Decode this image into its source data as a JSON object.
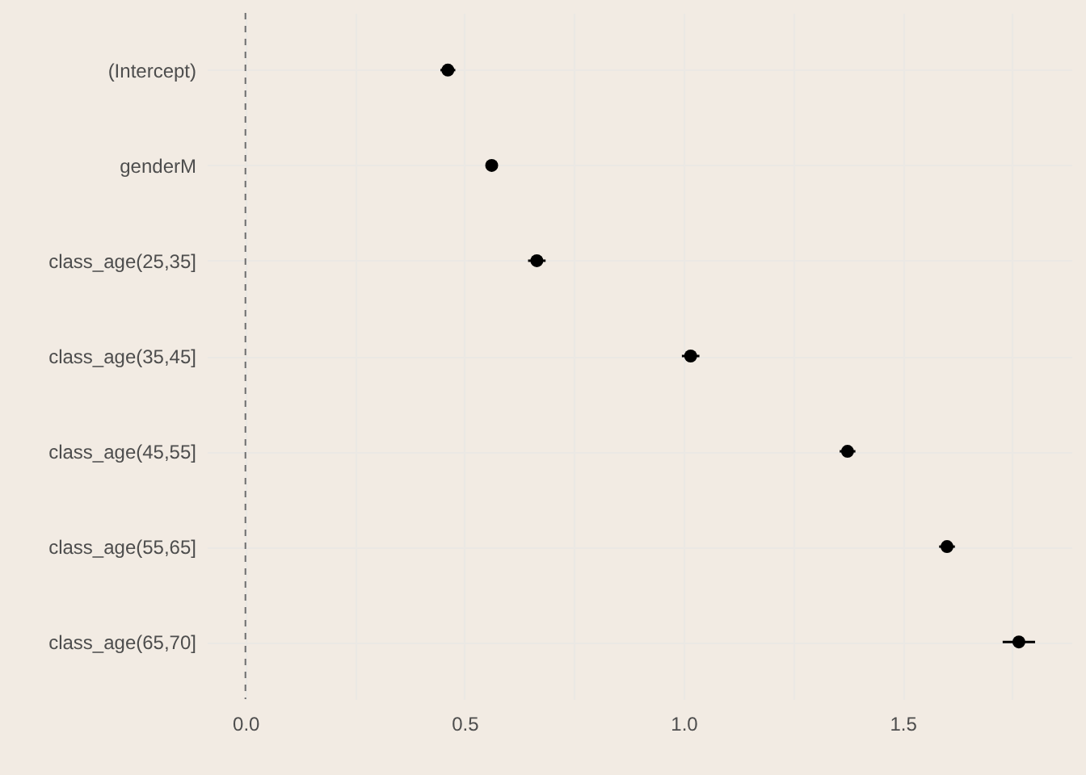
{
  "chart_data": {
    "type": "scatter",
    "orientation": "horizontal",
    "categories": [
      "(Intercept)",
      "genderM",
      "class_age(25,35]",
      "class_age(35,45]",
      "class_age(45,55]",
      "class_age(55,65]",
      "class_age(65,70]"
    ],
    "values": [
      0.462,
      0.562,
      0.665,
      1.016,
      1.374,
      1.601,
      1.765
    ],
    "errors": [
      0.017,
      0.01,
      0.02,
      0.02,
      0.018,
      0.018,
      0.037
    ],
    "color": "#000000",
    "marker": "circle",
    "xlim": [
      -0.088,
      1.885
    ],
    "xticks": [
      {
        "value": 0,
        "label": "0.0"
      },
      {
        "value": 0.25,
        "label": null
      },
      {
        "value": 0.5,
        "label": "0.5"
      },
      {
        "value": 0.75,
        "label": null
      },
      {
        "value": 1,
        "label": "1.0"
      },
      {
        "value": 1.25,
        "label": null
      },
      {
        "value": 1.5,
        "label": "1.5"
      },
      {
        "value": 1.75,
        "label": null
      }
    ],
    "ref_lines": [
      {
        "axis": "x",
        "value": 0,
        "color": "#6e6e6e",
        "line_style": "dashed"
      }
    ],
    "grid": true
  }
}
